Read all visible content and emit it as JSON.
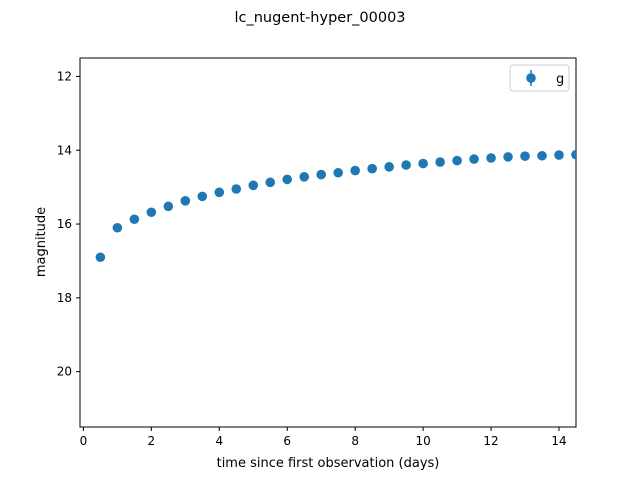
{
  "chart_data": {
    "type": "scatter",
    "title": "lc_nugent-hyper_00003",
    "xlabel": "time since first observation (days)",
    "ylabel": "magnitude",
    "xlim": [
      -0.1,
      14.5
    ],
    "ylim": [
      21.5,
      11.5
    ],
    "y_inverted": true,
    "xticks": [
      0,
      2,
      4,
      6,
      8,
      10,
      12,
      14
    ],
    "yticks": [
      12,
      14,
      16,
      18,
      20
    ],
    "grid": false,
    "legend_position": "top-right",
    "series": [
      {
        "name": "g",
        "color": "#1f77b4",
        "marker": "circle",
        "x": [
          0.5,
          1.0,
          1.5,
          2.0,
          2.5,
          3.0,
          3.5,
          4.0,
          4.5,
          5.0,
          5.5,
          6.0,
          6.5,
          7.0,
          7.5,
          8.0,
          8.5,
          9.0,
          9.5,
          10.0,
          10.5,
          11.0,
          11.5,
          12.0,
          12.5,
          13.0,
          13.5,
          14.0,
          14.5
        ],
        "y": [
          16.9,
          16.1,
          15.87,
          15.68,
          15.52,
          15.37,
          15.25,
          15.14,
          15.05,
          14.95,
          14.87,
          14.79,
          14.72,
          14.66,
          14.61,
          14.55,
          14.5,
          14.45,
          14.4,
          14.36,
          14.32,
          14.28,
          14.24,
          14.21,
          14.18,
          14.16,
          14.15,
          14.13,
          14.12
        ]
      }
    ]
  }
}
